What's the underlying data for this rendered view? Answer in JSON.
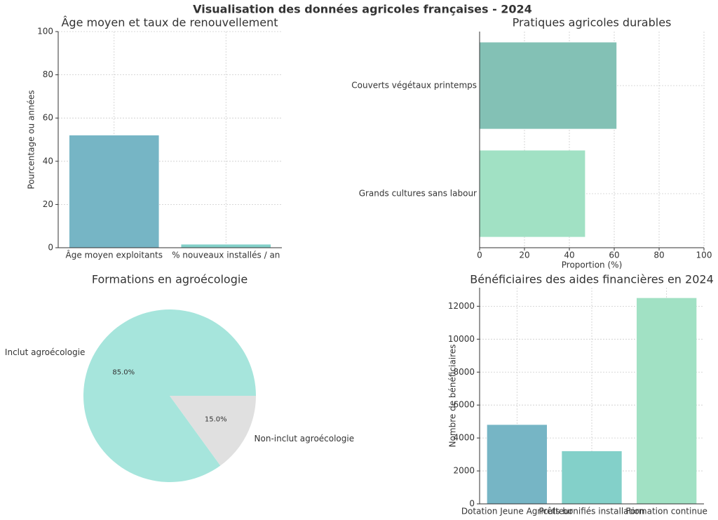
{
  "title": "Visualisation des données agricoles françaises - 2024",
  "chart_data": [
    {
      "type": "bar",
      "title": "Âge moyen et taux de renouvellement",
      "ylabel": "Pourcentage ou années",
      "categories": [
        "Âge moyen exploitants",
        "% nouveaux installés / an"
      ],
      "values": [
        52,
        1.5
      ],
      "colors": [
        "#76b5c5",
        "#83d0c9"
      ],
      "ylim": [
        0,
        100
      ],
      "yticks": [
        0,
        20,
        40,
        60,
        80,
        100
      ],
      "grid": true
    },
    {
      "type": "barh",
      "title": "Pratiques agricoles durables",
      "xlabel": "Proportion (%)",
      "categories": [
        "Couverts végétaux printemps",
        "Grands cultures sans labour"
      ],
      "values": [
        61,
        47
      ],
      "colors": [
        "#83c1b5",
        "#a1e1c4"
      ],
      "xlim": [
        0,
        100
      ],
      "xticks": [
        0,
        20,
        40,
        60,
        80,
        100
      ],
      "grid": true
    },
    {
      "type": "pie",
      "title": "Formations en agroécologie",
      "categories": [
        "Inclut agroécologie",
        "Non-inclut agroécologie"
      ],
      "values": [
        85,
        15
      ],
      "value_labels": [
        "85.0%",
        "15.0%"
      ],
      "colors": [
        "#a6e5dc",
        "#e0e0e0"
      ]
    },
    {
      "type": "bar",
      "title": "Bénéficiaires des aides financières en 2024",
      "ylabel": "Nombre de bénéficiaires",
      "categories": [
        "Dotation Jeune Agriculteur",
        "Prêts bonifiés installation",
        "Formation continue"
      ],
      "values": [
        4800,
        3200,
        12500
      ],
      "colors": [
        "#76b5c5",
        "#83d0c9",
        "#a1e1c4"
      ],
      "ylim": [
        0,
        13125
      ],
      "yticks": [
        0,
        2000,
        4000,
        6000,
        8000,
        10000,
        12000
      ],
      "grid": true
    }
  ]
}
